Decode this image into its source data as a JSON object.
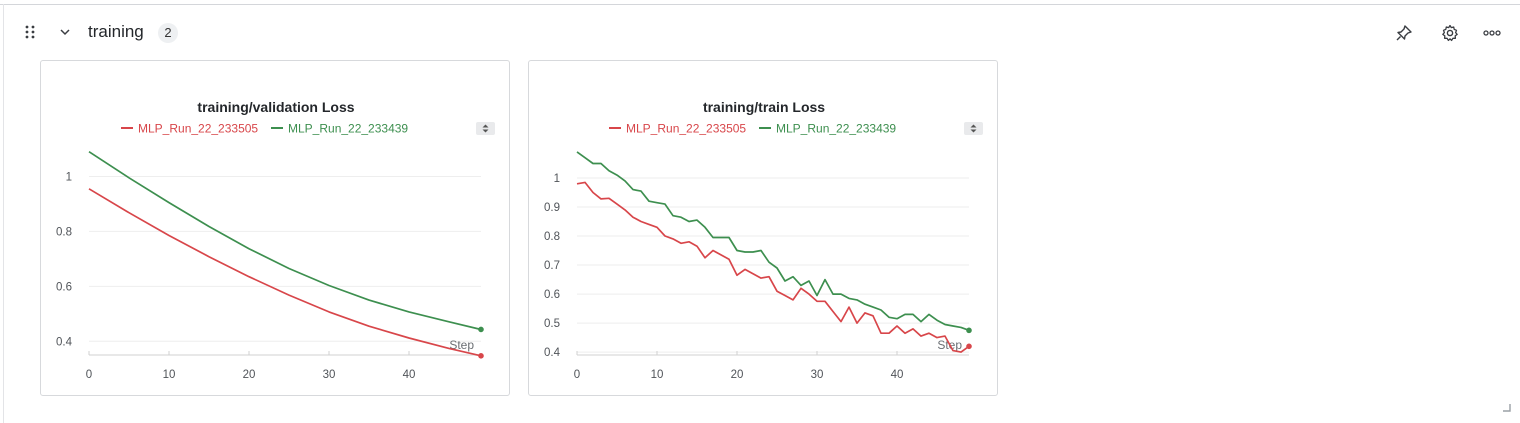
{
  "section": {
    "title": "training",
    "count": "2",
    "icons": [
      "drag-handle-icon",
      "chevron-down-icon",
      "pin-icon",
      "gear-icon",
      "more-horizontal-icon"
    ]
  },
  "colors": {
    "run_red": "#d8464a",
    "run_green": "#3d8f4f",
    "grid": "#eeeeee",
    "axis": "#e0e0e0"
  },
  "chart_data": [
    {
      "type": "line",
      "title": "training/validation Loss",
      "xlabel": "Step",
      "ylabel": "",
      "xlim": [
        0,
        49
      ],
      "ylim": [
        0.35,
        1.1
      ],
      "xticks": [
        0,
        10,
        20,
        30,
        40
      ],
      "yticks": [
        0.4,
        0.6,
        0.8,
        1
      ],
      "ytick_labels": [
        "0.4",
        "0.6",
        "0.8",
        "1"
      ],
      "legend_position": "top",
      "grid": true,
      "series": [
        {
          "name": "MLP_Run_22_233505",
          "color": "#d8464a",
          "x": [
            0,
            5,
            10,
            15,
            20,
            25,
            30,
            35,
            40,
            45,
            49
          ],
          "y": [
            0.955,
            0.868,
            0.785,
            0.708,
            0.635,
            0.568,
            0.507,
            0.455,
            0.412,
            0.374,
            0.347
          ]
        },
        {
          "name": "MLP_Run_22_233439",
          "color": "#3d8f4f",
          "x": [
            0,
            5,
            10,
            15,
            20,
            25,
            30,
            35,
            40,
            45,
            49
          ],
          "y": [
            1.09,
            0.995,
            0.905,
            0.818,
            0.737,
            0.665,
            0.603,
            0.55,
            0.507,
            0.471,
            0.443
          ]
        }
      ]
    },
    {
      "type": "line",
      "title": "training/train Loss",
      "xlabel": "Step",
      "ylabel": "",
      "xlim": [
        0,
        49
      ],
      "ylim": [
        0.39,
        1.1
      ],
      "xticks": [
        0,
        10,
        20,
        30,
        40
      ],
      "yticks": [
        0.4,
        0.5,
        0.6,
        0.7,
        0.8,
        0.9,
        1
      ],
      "ytick_labels": [
        "0.4",
        "0.5",
        "0.6",
        "0.7",
        "0.8",
        "0.9",
        "1"
      ],
      "legend_position": "top",
      "grid": true,
      "series": [
        {
          "name": "MLP_Run_22_233505",
          "color": "#d8464a",
          "x": [
            0,
            1,
            2,
            3,
            4,
            5,
            6,
            7,
            8,
            9,
            10,
            11,
            12,
            13,
            14,
            15,
            16,
            17,
            18,
            19,
            20,
            21,
            22,
            23,
            24,
            25,
            26,
            27,
            28,
            29,
            30,
            31,
            32,
            33,
            34,
            35,
            36,
            37,
            38,
            39,
            40,
            41,
            42,
            43,
            44,
            45,
            46,
            47,
            48,
            49
          ],
          "y": [
            0.98,
            0.985,
            0.95,
            0.928,
            0.93,
            0.91,
            0.89,
            0.865,
            0.85,
            0.84,
            0.83,
            0.8,
            0.79,
            0.775,
            0.78,
            0.765,
            0.725,
            0.75,
            0.735,
            0.72,
            0.665,
            0.685,
            0.67,
            0.655,
            0.66,
            0.61,
            0.595,
            0.58,
            0.62,
            0.6,
            0.575,
            0.575,
            0.54,
            0.505,
            0.555,
            0.5,
            0.535,
            0.525,
            0.465,
            0.465,
            0.49,
            0.465,
            0.48,
            0.455,
            0.465,
            0.45,
            0.455,
            0.405,
            0.4,
            0.42
          ]
        },
        {
          "name": "MLP_Run_22_233439",
          "color": "#3d8f4f",
          "x": [
            0,
            1,
            2,
            3,
            4,
            5,
            6,
            7,
            8,
            9,
            10,
            11,
            12,
            13,
            14,
            15,
            16,
            17,
            18,
            19,
            20,
            21,
            22,
            23,
            24,
            25,
            26,
            27,
            28,
            29,
            30,
            31,
            32,
            33,
            34,
            35,
            36,
            37,
            38,
            39,
            40,
            41,
            42,
            43,
            44,
            45,
            46,
            47,
            48,
            49
          ],
          "y": [
            1.09,
            1.07,
            1.05,
            1.05,
            1.025,
            1.01,
            0.99,
            0.96,
            0.955,
            0.92,
            0.915,
            0.91,
            0.87,
            0.865,
            0.85,
            0.855,
            0.83,
            0.795,
            0.795,
            0.795,
            0.75,
            0.745,
            0.745,
            0.75,
            0.71,
            0.69,
            0.645,
            0.66,
            0.63,
            0.645,
            0.595,
            0.65,
            0.6,
            0.6,
            0.585,
            0.58,
            0.565,
            0.555,
            0.545,
            0.52,
            0.515,
            0.53,
            0.53,
            0.505,
            0.53,
            0.51,
            0.495,
            0.49,
            0.485,
            0.475
          ]
        }
      ]
    }
  ]
}
